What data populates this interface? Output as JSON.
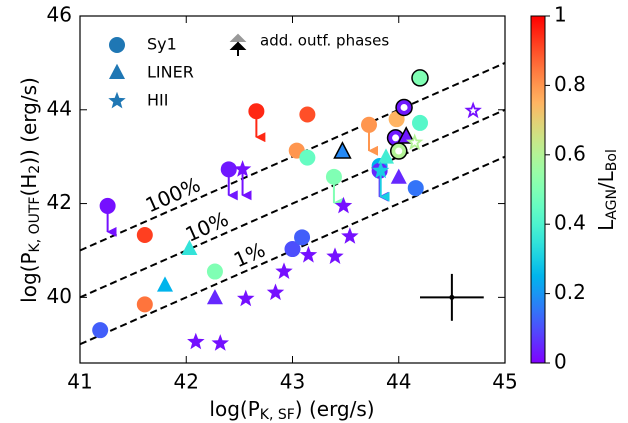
{
  "chart_data": {
    "type": "scatter",
    "xlabel": [
      "log(P",
      "K, SF",
      ") (erg/s)"
    ],
    "ylabel": [
      "log(P",
      "K, OUTF",
      "(H",
      "2",
      ")) (erg/s)"
    ],
    "xlim": [
      41,
      45
    ],
    "ylim": [
      38.6,
      46
    ],
    "xticks": [
      41,
      42,
      43,
      44,
      45
    ],
    "yticks": [
      40,
      42,
      44,
      46
    ],
    "colorbar": {
      "label": [
        "L",
        "AGN",
        "/L",
        "Bol"
      ],
      "lim": [
        0,
        1
      ],
      "ticks": [
        0,
        0.2,
        0.4,
        0.6,
        0.8,
        1
      ],
      "colormap": "rainbow"
    },
    "legend_color": "#1f77b4",
    "legend_note": "add. outf. phases",
    "lines": [
      {
        "label": "100%",
        "x": [
          41,
          45
        ],
        "y": [
          41,
          45
        ]
      },
      {
        "label": "10%",
        "x": [
          41,
          45
        ],
        "y": [
          40,
          44
        ]
      },
      {
        "label": "1%",
        "x": [
          41,
          45
        ],
        "y": [
          39,
          43
        ]
      }
    ],
    "error_bar": {
      "x": 44.5,
      "y": 40.0,
      "xerr": 0.3,
      "yerr": 0.5
    },
    "series": [
      {
        "name": "Sy1",
        "marker": "circle",
        "x": [
          41.19,
          41.61,
          41.61,
          41.26,
          42.27,
          42.4,
          42.66,
          43.04,
          43.14,
          43.14,
          43.0,
          43.09,
          43.39,
          43.72,
          43.82,
          43.98,
          44.2,
          44.16,
          44.2,
          44.05,
          43.97,
          44.0,
          43.82
        ],
        "y": [
          39.3,
          39.85,
          41.33,
          41.95,
          40.55,
          42.73,
          43.97,
          43.13,
          43.9,
          42.98,
          41.03,
          41.28,
          42.57,
          43.68,
          42.8,
          43.8,
          43.72,
          42.33,
          44.68,
          44.05,
          43.4,
          43.12,
          42.7
        ],
        "c": [
          0.12,
          0.85,
          0.92,
          0.02,
          0.5,
          0.03,
          0.95,
          0.8,
          0.9,
          0.45,
          0.1,
          0.12,
          0.5,
          0.8,
          0.25,
          0.75,
          0.42,
          0.15,
          0.5,
          0.03,
          0.03,
          0.6,
          0.05
        ],
        "upper_limit": [
          false,
          false,
          false,
          true,
          false,
          true,
          true,
          false,
          false,
          false,
          false,
          false,
          true,
          true,
          false,
          false,
          false,
          false,
          false,
          false,
          false,
          false,
          true
        ],
        "edge": [
          false,
          false,
          false,
          false,
          false,
          false,
          false,
          false,
          false,
          false,
          false,
          false,
          false,
          false,
          false,
          false,
          false,
          false,
          true,
          true,
          true,
          true,
          false
        ],
        "open": [
          false,
          false,
          false,
          false,
          false,
          false,
          false,
          false,
          false,
          false,
          false,
          false,
          false,
          false,
          false,
          false,
          false,
          false,
          false,
          true,
          true,
          true,
          false
        ]
      },
      {
        "name": "LINER",
        "marker": "triangle",
        "x": [
          42.03,
          41.8,
          42.27,
          43.47,
          43.88,
          44.0,
          44.07
        ],
        "y": [
          41.03,
          40.25,
          39.98,
          43.1,
          42.98,
          42.55,
          43.42
        ],
        "c": [
          0.35,
          0.25,
          0.05,
          0.18,
          0.38,
          0.05,
          0.03
        ],
        "upper_limit": [
          false,
          false,
          false,
          false,
          false,
          false,
          false
        ],
        "edge": [
          false,
          false,
          false,
          true,
          false,
          false,
          true
        ],
        "open": [
          false,
          false,
          false,
          false,
          false,
          false,
          false
        ]
      },
      {
        "name": "HII",
        "marker": "star",
        "x": [
          42.09,
          42.32,
          42.56,
          42.84,
          42.92,
          43.15,
          43.4,
          43.54,
          43.48,
          42.53,
          43.83,
          44.15,
          44.7
        ],
        "y": [
          39.05,
          39.02,
          39.97,
          40.1,
          40.55,
          40.9,
          40.87,
          41.3,
          41.95,
          42.73,
          42.7,
          43.3,
          43.98
        ],
        "c": [
          0.02,
          0.02,
          0.02,
          0.02,
          0.02,
          0.02,
          0.02,
          0.02,
          0.02,
          0.02,
          0.3,
          0.6,
          0.02
        ],
        "upper_limit": [
          false,
          false,
          false,
          false,
          false,
          false,
          false,
          false,
          false,
          true,
          true,
          false,
          false
        ],
        "edge": [
          false,
          false,
          false,
          false,
          false,
          false,
          false,
          false,
          false,
          false,
          false,
          false,
          false
        ],
        "open": [
          false,
          false,
          false,
          false,
          false,
          false,
          false,
          false,
          false,
          false,
          false,
          true,
          true
        ]
      }
    ]
  }
}
